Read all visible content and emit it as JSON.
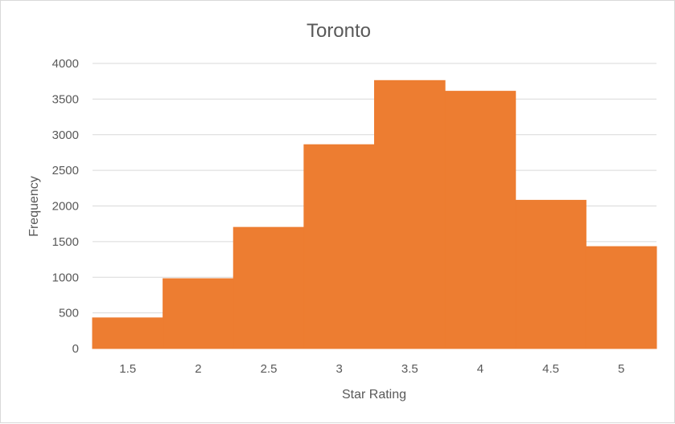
{
  "chart_data": {
    "type": "bar",
    "title": "Toronto",
    "xlabel": "Star Rating",
    "ylabel": "Frequency",
    "categories": [
      "1.5",
      "2",
      "2.5",
      "3",
      "3.5",
      "4",
      "4.5",
      "5"
    ],
    "values": [
      430,
      980,
      1700,
      2860,
      3760,
      3610,
      2080,
      1430
    ],
    "ylim": [
      0,
      4000
    ],
    "yticks": [
      "0",
      "500",
      "1000",
      "1500",
      "2000",
      "2500",
      "3000",
      "3500",
      "4000"
    ],
    "grid": true,
    "legend": "none",
    "colors": {
      "bar": "#ed7d31",
      "grid": "#d9d9d9",
      "text": "#595959"
    }
  }
}
